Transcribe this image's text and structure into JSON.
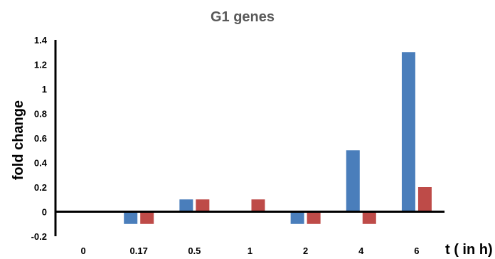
{
  "chart_data": {
    "type": "bar",
    "title": "G1 genes",
    "xlabel": "t ( in h)",
    "ylabel": "fold change",
    "categories": [
      "0",
      "0.17",
      "0.5",
      "1",
      "2",
      "4",
      "6"
    ],
    "series": [
      {
        "values": [
          0,
          -0.1,
          0.1,
          0,
          -0.1,
          0.5,
          1.3
        ],
        "color": "#4a7ebb"
      },
      {
        "values": [
          0,
          -0.1,
          0.1,
          0.1,
          -0.1,
          -0.1,
          0.2
        ],
        "color": "#be4b48"
      }
    ],
    "ylim": [
      -0.2,
      1.4
    ],
    "yticks": [
      "-0.2",
      "0",
      "0.2",
      "0.4",
      "0.6",
      "0.8",
      "1",
      "1.2",
      "1.4"
    ],
    "grid": false,
    "legend": "none"
  }
}
